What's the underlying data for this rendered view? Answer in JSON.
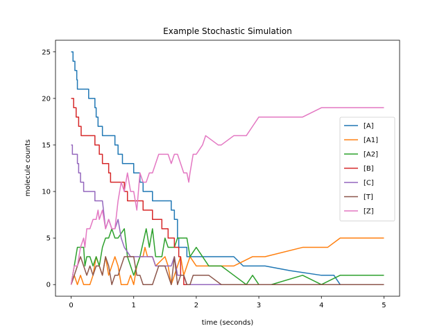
{
  "chart_data": {
    "type": "line",
    "title": "Example Stochastic Simulation",
    "xlabel": "time (seconds)",
    "ylabel": "molecule counts",
    "xlim": [
      -0.25,
      5.25
    ],
    "ylim": [
      -1.25,
      26.25
    ],
    "xticks": [
      0,
      1,
      2,
      3,
      4,
      5
    ],
    "yticks": [
      0,
      5,
      10,
      15,
      20,
      25
    ],
    "grid": false,
    "legend_position": "center-right",
    "series": [
      {
        "name": "[A]",
        "color": "#1f77b4",
        "points": [
          [
            0,
            25
          ],
          [
            0.03,
            25
          ],
          [
            0.03,
            24
          ],
          [
            0.06,
            24
          ],
          [
            0.06,
            23
          ],
          [
            0.09,
            23
          ],
          [
            0.09,
            22
          ],
          [
            0.1,
            22
          ],
          [
            0.1,
            21
          ],
          [
            0.28,
            21
          ],
          [
            0.28,
            20
          ],
          [
            0.38,
            20
          ],
          [
            0.38,
            19
          ],
          [
            0.4,
            19
          ],
          [
            0.4,
            18
          ],
          [
            0.43,
            18
          ],
          [
            0.43,
            17
          ],
          [
            0.5,
            17
          ],
          [
            0.5,
            16
          ],
          [
            0.7,
            16
          ],
          [
            0.7,
            15
          ],
          [
            0.75,
            15
          ],
          [
            0.75,
            14
          ],
          [
            0.82,
            14
          ],
          [
            0.82,
            13
          ],
          [
            1.0,
            13
          ],
          [
            1.0,
            12
          ],
          [
            1.1,
            12
          ],
          [
            1.1,
            11
          ],
          [
            1.15,
            11
          ],
          [
            1.15,
            10
          ],
          [
            1.3,
            10
          ],
          [
            1.3,
            9
          ],
          [
            1.6,
            9
          ],
          [
            1.6,
            8
          ],
          [
            1.65,
            8
          ],
          [
            1.65,
            7
          ],
          [
            1.7,
            7
          ],
          [
            1.7,
            5
          ],
          [
            1.72,
            5
          ],
          [
            1.72,
            4
          ],
          [
            1.85,
            4
          ],
          [
            1.85,
            3
          ],
          [
            2.6,
            3
          ],
          [
            2.75,
            2
          ],
          [
            3.0,
            2
          ],
          [
            3.1,
            2
          ],
          [
            3.5,
            1.5
          ],
          [
            4.0,
            1
          ],
          [
            4.2,
            1
          ],
          [
            4.3,
            0
          ],
          [
            5.0,
            0
          ]
        ]
      },
      {
        "name": "[A1]",
        "color": "#ff7f0e",
        "points": [
          [
            0,
            0
          ],
          [
            0.05,
            1
          ],
          [
            0.1,
            0
          ],
          [
            0.15,
            1
          ],
          [
            0.2,
            0
          ],
          [
            0.3,
            0
          ],
          [
            0.35,
            1
          ],
          [
            0.4,
            3
          ],
          [
            0.45,
            2
          ],
          [
            0.5,
            1
          ],
          [
            0.55,
            3
          ],
          [
            0.6,
            1
          ],
          [
            0.65,
            2
          ],
          [
            0.7,
            3
          ],
          [
            0.75,
            2
          ],
          [
            0.8,
            0
          ],
          [
            0.9,
            0
          ],
          [
            0.95,
            1
          ],
          [
            1.0,
            0
          ],
          [
            1.05,
            2
          ],
          [
            1.1,
            3
          ],
          [
            1.15,
            3
          ],
          [
            1.18,
            4
          ],
          [
            1.22,
            3
          ],
          [
            1.3,
            3
          ],
          [
            1.35,
            2
          ],
          [
            1.5,
            3
          ],
          [
            1.55,
            2
          ],
          [
            1.6,
            0
          ],
          [
            1.65,
            1
          ],
          [
            1.75,
            3
          ],
          [
            1.8,
            1
          ],
          [
            1.85,
            2
          ],
          [
            1.9,
            3
          ],
          [
            2.0,
            2
          ],
          [
            2.6,
            2
          ],
          [
            2.75,
            2.5
          ],
          [
            2.9,
            3
          ],
          [
            3.0,
            3
          ],
          [
            3.1,
            3
          ],
          [
            3.7,
            4
          ],
          [
            4.1,
            4
          ],
          [
            4.3,
            5
          ],
          [
            5.0,
            5
          ]
        ]
      },
      {
        "name": "[A2]",
        "color": "#2ca02c",
        "points": [
          [
            0,
            0
          ],
          [
            0.05,
            2
          ],
          [
            0.1,
            4
          ],
          [
            0.2,
            4
          ],
          [
            0.22,
            2
          ],
          [
            0.25,
            3
          ],
          [
            0.3,
            3
          ],
          [
            0.35,
            2
          ],
          [
            0.4,
            3
          ],
          [
            0.45,
            2
          ],
          [
            0.5,
            4
          ],
          [
            0.55,
            5
          ],
          [
            0.6,
            5
          ],
          [
            0.65,
            6
          ],
          [
            0.7,
            5
          ],
          [
            0.75,
            5
          ],
          [
            0.85,
            6
          ],
          [
            0.9,
            3
          ],
          [
            0.95,
            2
          ],
          [
            1.0,
            1
          ],
          [
            1.1,
            3
          ],
          [
            1.2,
            6
          ],
          [
            1.25,
            4
          ],
          [
            1.3,
            6
          ],
          [
            1.35,
            3
          ],
          [
            1.45,
            3
          ],
          [
            1.5,
            5
          ],
          [
            1.55,
            4
          ],
          [
            1.65,
            4
          ],
          [
            1.7,
            5
          ],
          [
            1.85,
            5
          ],
          [
            1.9,
            3
          ],
          [
            2.0,
            4
          ],
          [
            2.1,
            3
          ],
          [
            2.2,
            2
          ],
          [
            2.4,
            2
          ],
          [
            2.6,
            1
          ],
          [
            2.8,
            0
          ],
          [
            2.9,
            1
          ],
          [
            3.0,
            0
          ],
          [
            3.2,
            0
          ],
          [
            3.7,
            1
          ],
          [
            4.0,
            0
          ],
          [
            4.3,
            1
          ],
          [
            5.0,
            1
          ]
        ]
      },
      {
        "name": "[B]",
        "color": "#d62728",
        "points": [
          [
            0,
            20
          ],
          [
            0.04,
            20
          ],
          [
            0.04,
            19
          ],
          [
            0.08,
            19
          ],
          [
            0.08,
            18
          ],
          [
            0.12,
            18
          ],
          [
            0.12,
            17
          ],
          [
            0.16,
            17
          ],
          [
            0.16,
            16
          ],
          [
            0.38,
            16
          ],
          [
            0.38,
            15
          ],
          [
            0.45,
            15
          ],
          [
            0.45,
            14
          ],
          [
            0.5,
            14
          ],
          [
            0.5,
            13
          ],
          [
            0.6,
            13
          ],
          [
            0.6,
            12
          ],
          [
            0.63,
            12
          ],
          [
            0.63,
            11
          ],
          [
            0.85,
            11
          ],
          [
            0.85,
            10
          ],
          [
            0.9,
            10
          ],
          [
            0.9,
            9
          ],
          [
            1.15,
            9
          ],
          [
            1.15,
            8
          ],
          [
            1.3,
            8
          ],
          [
            1.3,
            7
          ],
          [
            1.45,
            7
          ],
          [
            1.45,
            6
          ],
          [
            1.55,
            6
          ],
          [
            1.55,
            5
          ],
          [
            1.65,
            5
          ],
          [
            1.65,
            4
          ],
          [
            1.72,
            4
          ],
          [
            1.72,
            3
          ],
          [
            1.75,
            3
          ],
          [
            1.75,
            1
          ],
          [
            1.8,
            1
          ],
          [
            1.8,
            0
          ],
          [
            5.0,
            0
          ]
        ]
      },
      {
        "name": "[C]",
        "color": "#9467bd",
        "points": [
          [
            0,
            15
          ],
          [
            0.02,
            15
          ],
          [
            0.02,
            14
          ],
          [
            0.1,
            14
          ],
          [
            0.1,
            13
          ],
          [
            0.12,
            13
          ],
          [
            0.12,
            12
          ],
          [
            0.15,
            12
          ],
          [
            0.15,
            11
          ],
          [
            0.2,
            11
          ],
          [
            0.2,
            10
          ],
          [
            0.38,
            10
          ],
          [
            0.38,
            9
          ],
          [
            0.5,
            9
          ],
          [
            0.55,
            6
          ],
          [
            0.6,
            7
          ],
          [
            0.65,
            6
          ],
          [
            0.7,
            6
          ],
          [
            0.75,
            7
          ],
          [
            0.8,
            5
          ],
          [
            0.85,
            4
          ],
          [
            0.95,
            3
          ],
          [
            1.0,
            3
          ],
          [
            1.3,
            3
          ],
          [
            1.35,
            2
          ],
          [
            1.5,
            2
          ],
          [
            1.6,
            2
          ],
          [
            1.65,
            3
          ],
          [
            1.7,
            1
          ],
          [
            1.8,
            1
          ],
          [
            1.85,
            0
          ],
          [
            5.0,
            0
          ]
        ]
      },
      {
        "name": "[T]",
        "color": "#8c564b",
        "points": [
          [
            0,
            0
          ],
          [
            0.1,
            2
          ],
          [
            0.15,
            3
          ],
          [
            0.2,
            2
          ],
          [
            0.25,
            1
          ],
          [
            0.3,
            2
          ],
          [
            0.35,
            1
          ],
          [
            0.4,
            2
          ],
          [
            0.45,
            2
          ],
          [
            0.5,
            1
          ],
          [
            0.55,
            3
          ],
          [
            0.6,
            2
          ],
          [
            0.65,
            0
          ],
          [
            0.7,
            1
          ],
          [
            0.75,
            1
          ],
          [
            0.8,
            2
          ],
          [
            0.85,
            3
          ],
          [
            1.0,
            3
          ],
          [
            1.05,
            1
          ],
          [
            1.1,
            1
          ],
          [
            1.15,
            0
          ],
          [
            1.3,
            0
          ],
          [
            1.4,
            2
          ],
          [
            1.5,
            2
          ],
          [
            1.55,
            1
          ],
          [
            1.6,
            0
          ],
          [
            1.65,
            3
          ],
          [
            1.7,
            0
          ],
          [
            1.75,
            1
          ],
          [
            1.8,
            1
          ],
          [
            1.85,
            0
          ],
          [
            1.9,
            0
          ],
          [
            1.95,
            1
          ],
          [
            2.2,
            1
          ],
          [
            2.4,
            0
          ],
          [
            5.0,
            0
          ]
        ]
      },
      {
        "name": "[Z]",
        "color": "#e377c2",
        "points": [
          [
            0,
            0
          ],
          [
            0.05,
            2
          ],
          [
            0.1,
            2
          ],
          [
            0.15,
            4
          ],
          [
            0.2,
            5
          ],
          [
            0.22,
            4
          ],
          [
            0.25,
            6
          ],
          [
            0.3,
            6
          ],
          [
            0.35,
            7
          ],
          [
            0.4,
            7
          ],
          [
            0.43,
            8
          ],
          [
            0.45,
            7
          ],
          [
            0.5,
            8
          ],
          [
            0.55,
            6
          ],
          [
            0.6,
            7
          ],
          [
            0.65,
            6
          ],
          [
            0.7,
            6
          ],
          [
            0.75,
            9
          ],
          [
            0.8,
            11
          ],
          [
            0.85,
            10
          ],
          [
            0.9,
            12
          ],
          [
            0.95,
            10
          ],
          [
            1.0,
            10
          ],
          [
            1.05,
            8
          ],
          [
            1.1,
            12
          ],
          [
            1.15,
            11
          ],
          [
            1.2,
            11
          ],
          [
            1.25,
            12
          ],
          [
            1.3,
            12
          ],
          [
            1.35,
            13
          ],
          [
            1.4,
            14
          ],
          [
            1.55,
            14
          ],
          [
            1.6,
            13
          ],
          [
            1.65,
            14
          ],
          [
            1.7,
            14
          ],
          [
            1.75,
            13
          ],
          [
            1.8,
            12
          ],
          [
            1.85,
            12
          ],
          [
            1.88,
            11
          ],
          [
            1.9,
            12
          ],
          [
            1.95,
            14
          ],
          [
            2.0,
            14
          ],
          [
            2.1,
            15
          ],
          [
            2.15,
            16
          ],
          [
            2.35,
            15
          ],
          [
            2.4,
            15
          ],
          [
            2.6,
            16
          ],
          [
            2.8,
            16
          ],
          [
            2.9,
            17
          ],
          [
            3.0,
            18
          ],
          [
            3.7,
            18
          ],
          [
            4.0,
            19
          ],
          [
            5.0,
            19
          ]
        ]
      }
    ]
  }
}
